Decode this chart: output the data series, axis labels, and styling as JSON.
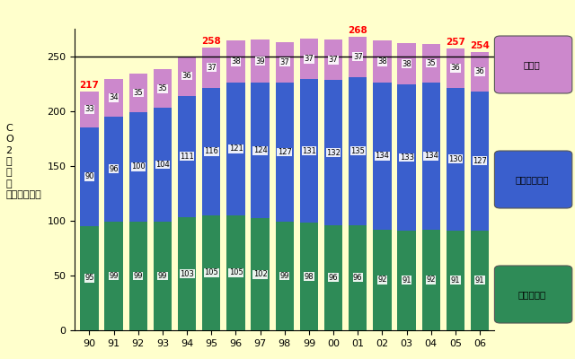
{
  "years": [
    "90",
    "91",
    "92",
    "93",
    "94",
    "95",
    "96",
    "97",
    "98",
    "99",
    "00",
    "01",
    "02",
    "03",
    "04",
    "05",
    "06"
  ],
  "freight": [
    95,
    99,
    99,
    99,
    103,
    105,
    105,
    102,
    99,
    98,
    96,
    96,
    92,
    91,
    92,
    91,
    91
  ],
  "passenger": [
    90,
    96,
    100,
    104,
    111,
    116,
    121,
    124,
    127,
    131,
    132,
    135,
    134,
    133,
    134,
    130,
    127
  ],
  "other": [
    33,
    34,
    35,
    35,
    36,
    37,
    38,
    39,
    37,
    37,
    37,
    37,
    38,
    38,
    35,
    36,
    36
  ],
  "highlight_years": [
    "90",
    "95",
    "01",
    "05",
    "06"
  ],
  "highlight_totals": {
    "90": 217,
    "95": 258,
    "01": 268,
    "05": 257,
    "06": 254
  },
  "freight_color": "#2e8b57",
  "passenger_color": "#3a5fcd",
  "other_color": "#cc88cc",
  "background_color": "#ffffcc",
  "hline_y": 250,
  "ylim": [
    0,
    275
  ],
  "yticks": [
    0,
    50,
    100,
    150,
    200,
    250
  ],
  "tick_fontsize": 8,
  "bar_width": 0.75,
  "legend_labels": [
    "その他",
    "自家用乗用車",
    "貨物自動車"
  ],
  "legend_colors": [
    "#cc88cc",
    "#3a5fcd",
    "#2e8b57"
  ],
  "ylabel_text": "C\nO\n2\n排\n出\n量\n（百万トン）"
}
